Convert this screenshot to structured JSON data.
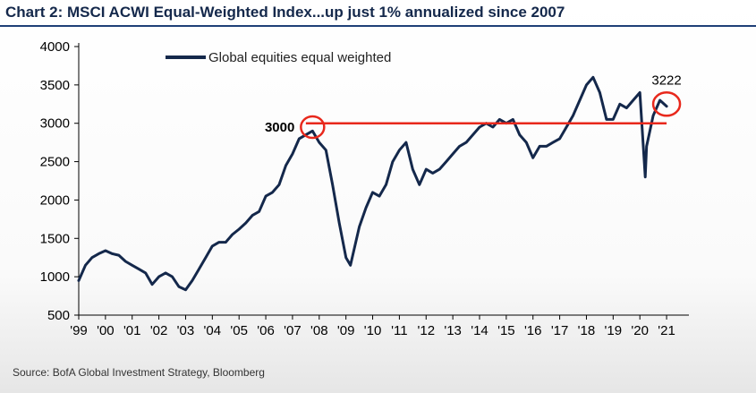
{
  "title": "Chart 2: MSCI ACWI Equal-Weighted Index...up just 1% annualized since 2007",
  "source": "Source: BofA Global Investment Strategy, Bloomberg",
  "colors": {
    "series": "#14284b",
    "reference_line": "#e8281c",
    "highlight_circle": "#e8281c",
    "title": "#14284b"
  },
  "chart_data": {
    "type": "line",
    "title": "Chart 2: MSCI ACWI Equal-Weighted Index...up just 1% annualized since 2007",
    "xlabel": "",
    "ylabel": "",
    "ylim": [
      500,
      4000
    ],
    "xlim": [
      1999.0,
      2021.5
    ],
    "yticks": [
      "500",
      "1000",
      "1500",
      "2000",
      "2500",
      "3000",
      "3500",
      "4000"
    ],
    "xticks": [
      "'99",
      "'00",
      "'01",
      "'02",
      "'03",
      "'04",
      "'05",
      "'06",
      "'07",
      "'08",
      "'09",
      "'10",
      "'11",
      "'12",
      "'13",
      "'14",
      "'15",
      "'16",
      "'17",
      "'18",
      "'19",
      "'20",
      "'21"
    ],
    "grid": false,
    "legend_position": "top-left",
    "series": [
      {
        "name": "Global equities equal weighted",
        "x": [
          1999.0,
          1999.25,
          1999.5,
          1999.75,
          2000.0,
          2000.25,
          2000.5,
          2000.75,
          2001.0,
          2001.25,
          2001.5,
          2001.75,
          2002.0,
          2002.25,
          2002.5,
          2002.75,
          2003.0,
          2003.25,
          2003.5,
          2003.75,
          2004.0,
          2004.25,
          2004.5,
          2004.75,
          2005.0,
          2005.25,
          2005.5,
          2005.75,
          2006.0,
          2006.25,
          2006.5,
          2006.75,
          2007.0,
          2007.25,
          2007.5,
          2007.75,
          2008.0,
          2008.25,
          2008.5,
          2008.75,
          2009.0,
          2009.17,
          2009.5,
          2009.75,
          2010.0,
          2010.25,
          2010.5,
          2010.75,
          2011.0,
          2011.25,
          2011.5,
          2011.75,
          2012.0,
          2012.25,
          2012.5,
          2012.75,
          2013.0,
          2013.25,
          2013.5,
          2013.75,
          2014.0,
          2014.25,
          2014.5,
          2014.75,
          2015.0,
          2015.25,
          2015.5,
          2015.75,
          2016.0,
          2016.25,
          2016.5,
          2016.75,
          2017.0,
          2017.25,
          2017.5,
          2017.75,
          2018.0,
          2018.25,
          2018.5,
          2018.75,
          2019.0,
          2019.25,
          2019.5,
          2019.75,
          2020.0,
          2020.2,
          2020.25,
          2020.5,
          2020.75,
          2021.0
        ],
        "values": [
          950,
          1150,
          1250,
          1300,
          1340,
          1300,
          1280,
          1200,
          1150,
          1100,
          1050,
          900,
          1000,
          1050,
          1000,
          870,
          830,
          950,
          1100,
          1250,
          1400,
          1450,
          1450,
          1550,
          1620,
          1700,
          1800,
          1850,
          2050,
          2100,
          2200,
          2450,
          2600,
          2800,
          2850,
          2900,
          2750,
          2650,
          2200,
          1700,
          1250,
          1150,
          1650,
          1900,
          2100,
          2050,
          2200,
          2500,
          2650,
          2750,
          2400,
          2200,
          2400,
          2350,
          2400,
          2500,
          2600,
          2700,
          2750,
          2850,
          2950,
          3000,
          2950,
          3050,
          3000,
          3050,
          2850,
          2750,
          2550,
          2700,
          2700,
          2750,
          2800,
          2950,
          3100,
          3300,
          3500,
          3600,
          3400,
          3050,
          3050,
          3250,
          3200,
          3300,
          3400,
          2300,
          2700,
          3100,
          3300,
          3222
        ]
      }
    ],
    "reference_line": {
      "value": 3000,
      "x_start": 2007.5,
      "x_end": 2021.0,
      "label": "3000"
    },
    "annotations": [
      {
        "label": "3000",
        "x": 2007.75,
        "y": 2950
      },
      {
        "label": "3222",
        "x": 2021.0,
        "y": 3250
      }
    ]
  }
}
